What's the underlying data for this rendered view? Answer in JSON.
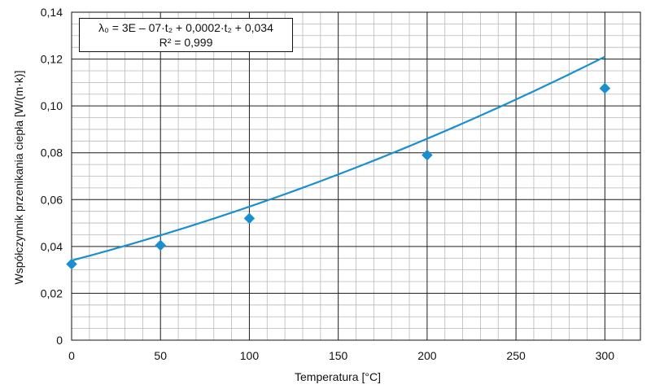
{
  "chart_data": {
    "type": "scatter",
    "xlabel": "Temperatura [°C]",
    "ylabel": "Współczynnik przenikania ciepła [W/(m·k)]",
    "xlim": [
      0,
      320
    ],
    "ylim": [
      0,
      0.14
    ],
    "grid": true,
    "x_ticks": [
      0,
      50,
      100,
      150,
      200,
      250,
      300
    ],
    "x_tick_labels": [
      "0",
      "50",
      "100",
      "150",
      "200",
      "250",
      "300"
    ],
    "y_ticks": [
      0,
      0.02,
      0.04,
      0.06,
      0.08,
      0.1,
      0.12,
      0.14
    ],
    "y_tick_labels": [
      "0",
      "0,02",
      "0,04",
      "0,06",
      "0,08",
      "0,10",
      "0,12",
      "0,14"
    ],
    "series": [
      {
        "kind": "points",
        "marker": "diamond",
        "color": "#1a8fcf",
        "points": [
          {
            "x": 0,
            "y": 0.0325
          },
          {
            "x": 50,
            "y": 0.0405
          },
          {
            "x": 100,
            "y": 0.052
          },
          {
            "x": 200,
            "y": 0.079
          },
          {
            "x": 300,
            "y": 0.1075
          }
        ]
      },
      {
        "kind": "trendline",
        "color": "#1a8fcf",
        "coefficients": {
          "a": 3e-07,
          "b": 0.0002,
          "c": 0.034
        },
        "x_range": [
          0,
          300
        ]
      }
    ],
    "annotation": {
      "line1": "λ₀ = 3E – 07·t₂ + 0,0002·t₂ + 0,034",
      "line2": "R² = 0,999"
    }
  }
}
